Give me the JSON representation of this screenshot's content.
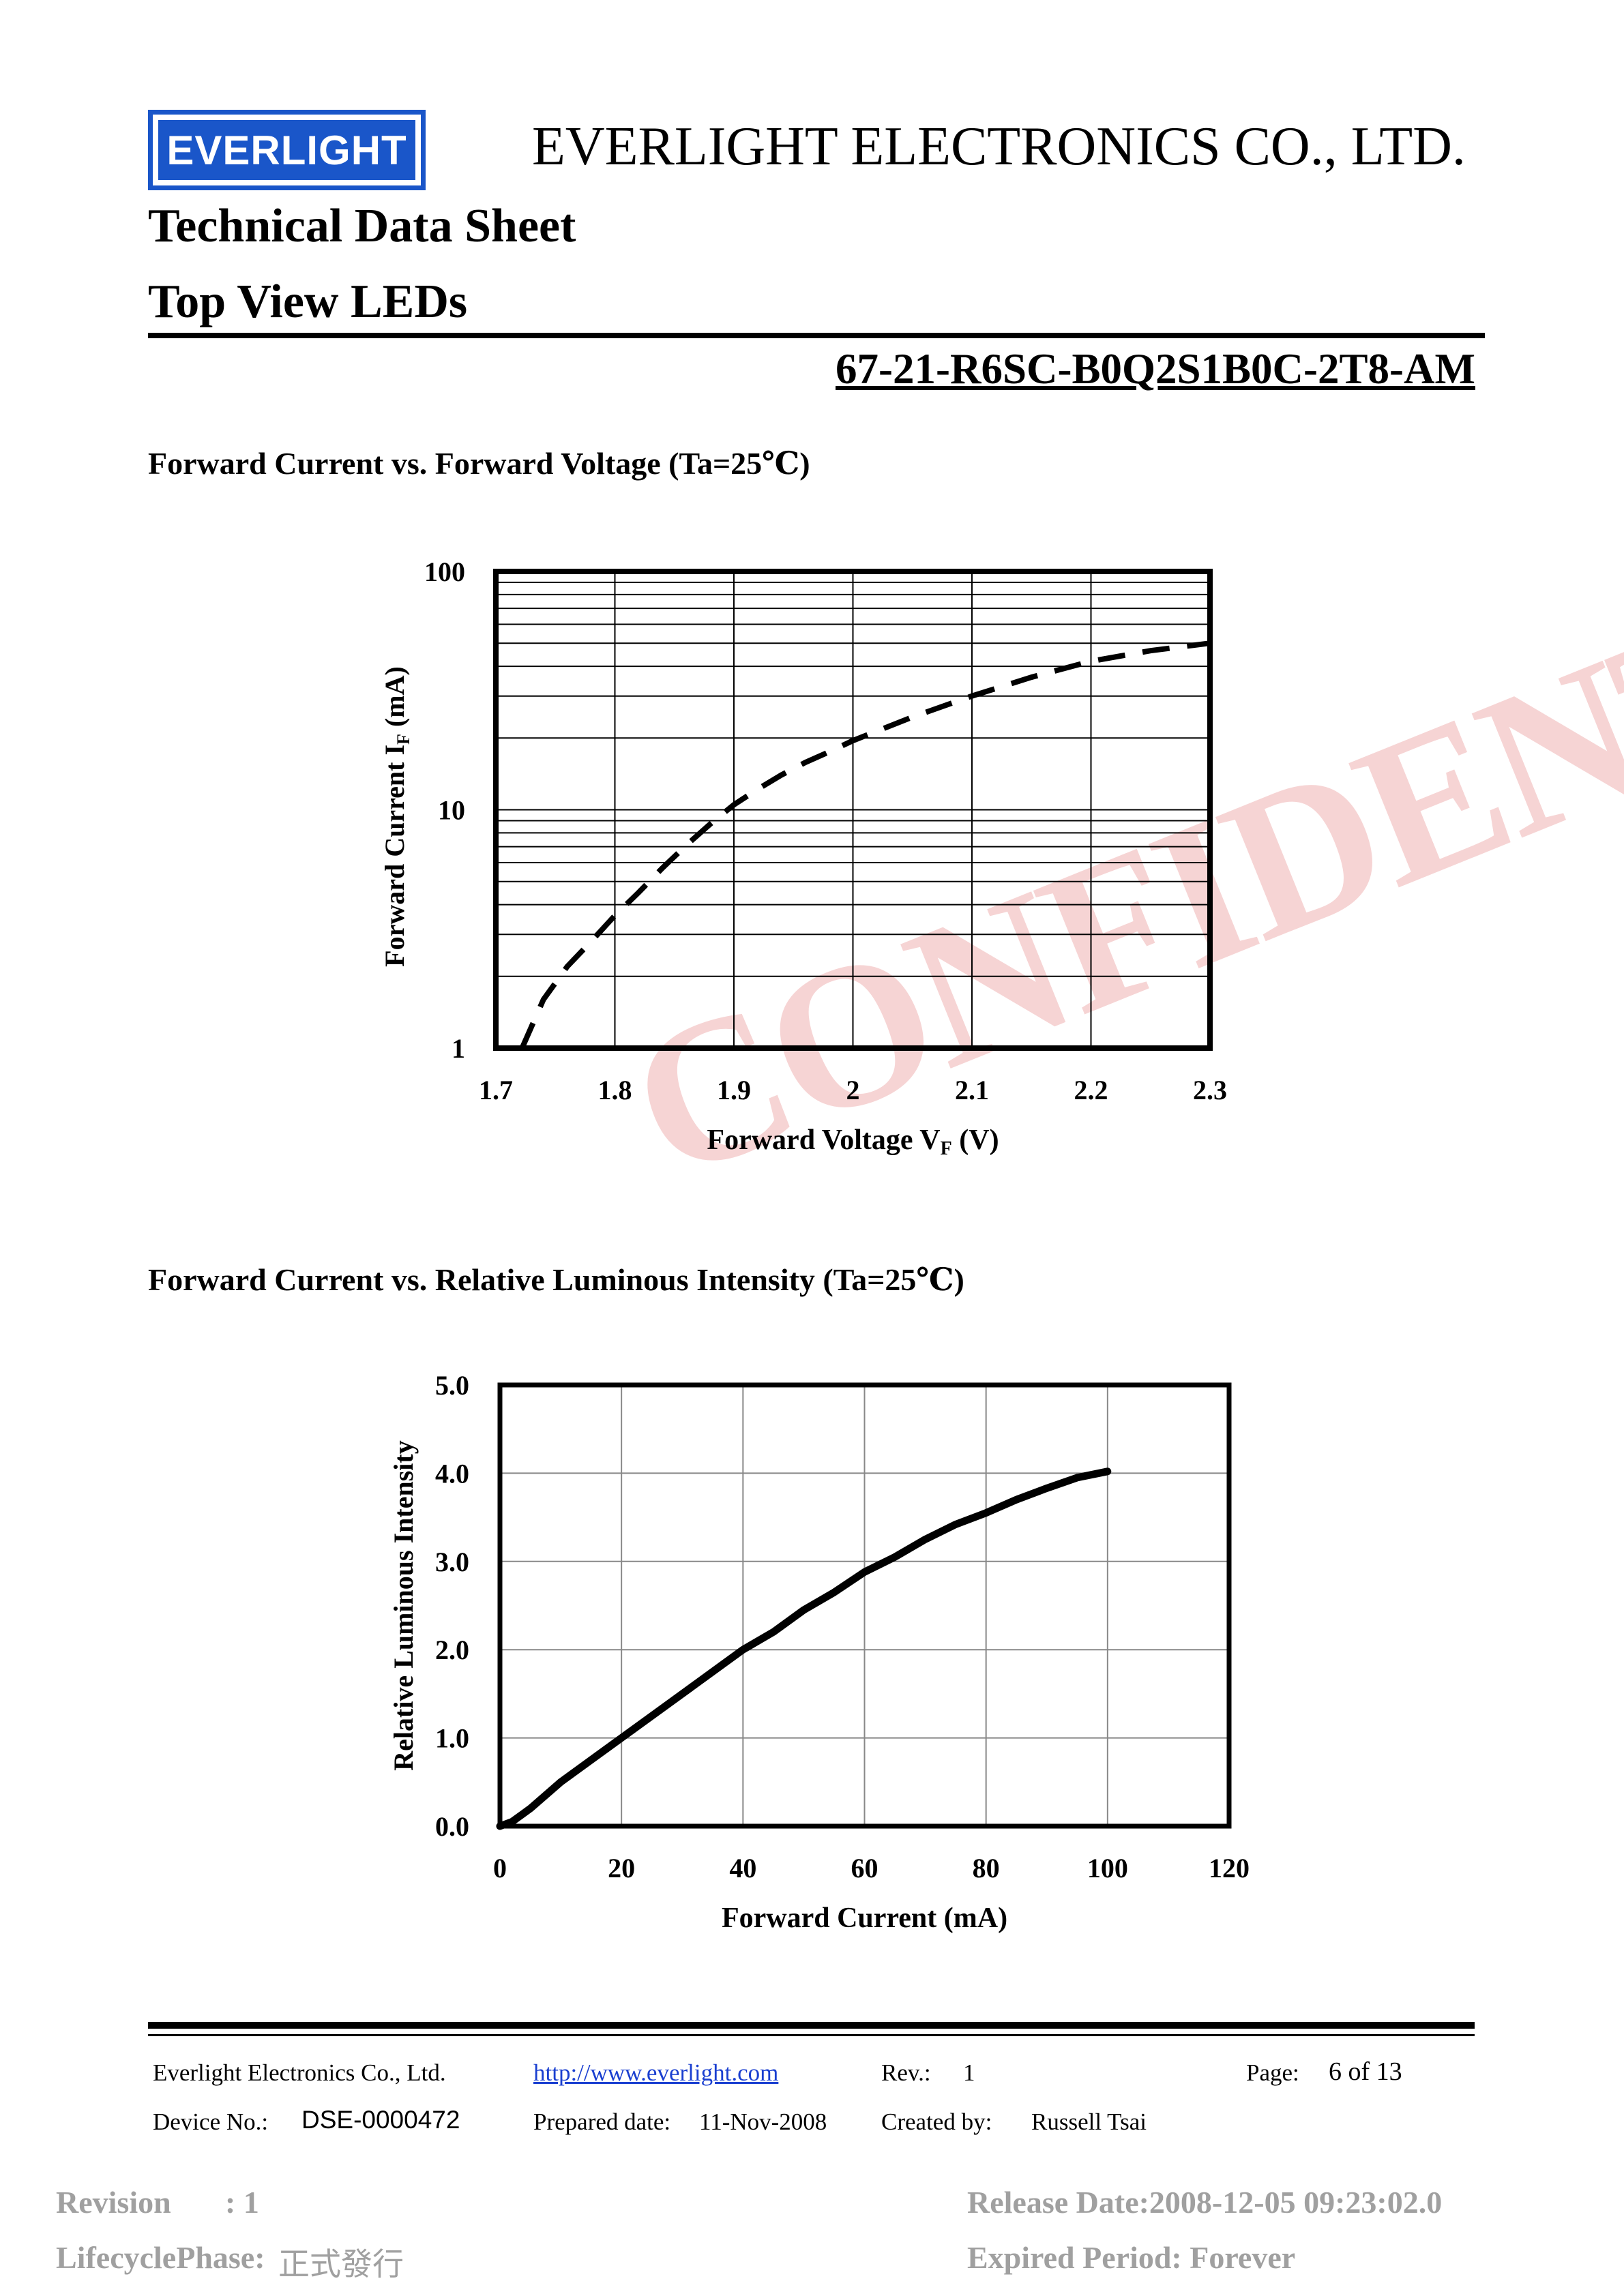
{
  "header": {
    "logo_text": "EVERLIGHT",
    "company": "EVERLIGHT ELECTRONICS CO., LTD.",
    "title1": "Technical Data Sheet",
    "title2": "Top View LEDs",
    "part_number": "67-21-R6SC-B0Q2S1B0C-2T8-AM"
  },
  "watermark": "CONFIDENTIAL",
  "section1": {
    "title": "Forward Current vs. Forward Voltage (Ta=25℃)"
  },
  "section2": {
    "title": "Forward Current vs. Relative Luminous Intensity (Ta=25℃)"
  },
  "chart_data": [
    {
      "type": "line",
      "xlabel": "Forward Voltage V",
      "xlabel_sub": "F",
      "xlabel_unit": " (V)",
      "ylabel": "Forward Current I",
      "ylabel_sub": "F",
      "ylabel_unit": " (mA)",
      "x_ticks": [
        "1.7",
        "1.8",
        "1.9",
        "2",
        "2.1",
        "2.2",
        "2.3"
      ],
      "y_ticks": [
        "1",
        "10",
        "100"
      ],
      "xlim": [
        1.7,
        2.3
      ],
      "ylim": [
        1,
        100
      ],
      "y_scale": "log",
      "grid": true,
      "series": [
        {
          "style": "dashed",
          "x": [
            1.722,
            1.74,
            1.76,
            1.78,
            1.8,
            1.82,
            1.84,
            1.86,
            1.88,
            1.9,
            1.92,
            1.94,
            1.96,
            1.98,
            2.0,
            2.05,
            2.1,
            2.15,
            2.2,
            2.25,
            2.3
          ],
          "y": [
            1.0,
            1.6,
            2.2,
            2.8,
            3.6,
            4.5,
            5.7,
            7.1,
            8.7,
            10.5,
            12.2,
            14.0,
            15.8,
            17.5,
            19.5,
            24.5,
            30.0,
            36.0,
            42.0,
            46.5,
            50.0
          ]
        }
      ]
    },
    {
      "type": "line",
      "xlabel": "Forward Current (mA)",
      "ylabel": "Relative Luminous Intensity",
      "x_ticks": [
        "0",
        "20",
        "40",
        "60",
        "80",
        "100",
        "120"
      ],
      "y_ticks": [
        "0.0",
        "1.0",
        "2.0",
        "3.0",
        "4.0",
        "5.0"
      ],
      "xlim": [
        0,
        120
      ],
      "ylim": [
        0,
        5
      ],
      "grid": true,
      "series": [
        {
          "style": "solid",
          "x": [
            0,
            2,
            5,
            10,
            15,
            20,
            25,
            30,
            35,
            40,
            45,
            50,
            55,
            60,
            65,
            70,
            75,
            80,
            85,
            90,
            95,
            100
          ],
          "y": [
            0.0,
            0.05,
            0.2,
            0.5,
            0.75,
            1.0,
            1.25,
            1.5,
            1.75,
            2.0,
            2.2,
            2.45,
            2.65,
            2.88,
            3.05,
            3.25,
            3.42,
            3.55,
            3.7,
            3.83,
            3.95,
            4.02
          ]
        }
      ]
    }
  ],
  "footer": {
    "company": "Everlight Electronics Co., Ltd.",
    "url": "http://www.everlight.com",
    "rev_label": "Rev.:",
    "rev_value": "1",
    "page_label": "Page:",
    "page_value": "6 of 13",
    "device_label": "Device No.:",
    "device_value": "DSE-0000472",
    "prepared_label": "Prepared date:",
    "prepared_value": "11-Nov-2008",
    "created_label": "Created by:",
    "created_value": "Russell Tsai"
  },
  "meta": {
    "revision_label": "Revision",
    "revision_value": ": 1",
    "lifecycle_label": "LifecyclePhase:",
    "lifecycle_value": "正式發行",
    "release": "Release Date:2008-12-05 09:23:02.0",
    "expired": "Expired Period: Forever"
  }
}
